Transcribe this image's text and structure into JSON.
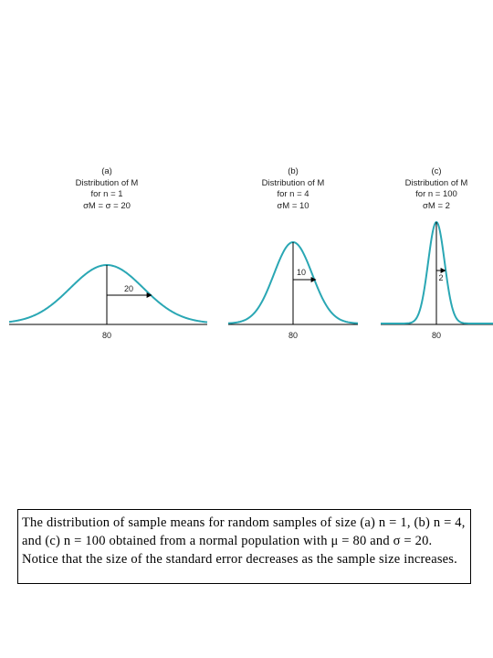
{
  "panels": [
    {
      "id": "a",
      "header_lines": [
        "(a)",
        "Distribution of M",
        "for n = 1",
        "σM = σ = 20"
      ],
      "center_label": "80",
      "se_label": "20",
      "curve_color": "#2aa7b4"
    },
    {
      "id": "b",
      "header_lines": [
        "(b)",
        "Distribution of M",
        "for n = 4",
        "σM = 10"
      ],
      "center_label": "80",
      "se_label": "10",
      "curve_color": "#2aa7b4"
    },
    {
      "id": "c",
      "header_lines": [
        "(c)",
        "Distribution of M",
        "for n = 100",
        "σM = 2"
      ],
      "center_label": "80",
      "se_label": "2",
      "curve_color": "#2aa7b4"
    }
  ],
  "caption": {
    "text": "The distribution of sample means for random samples of size (a) n = 1, (b) n = 4, and (c) n = 100 obtained from a normal population with μ = 80 and σ = 20. Notice that the size of the standard error decreases as the sample size increases."
  }
}
